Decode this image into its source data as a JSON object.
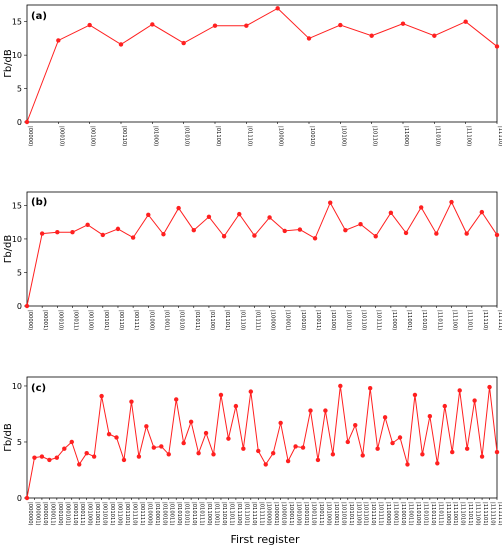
{
  "xlabel": "First register",
  "colors": {
    "series": "#ff2020",
    "axis": "#000000"
  },
  "chart_data": [
    {
      "type": "line",
      "panel_label": "(a)",
      "ylabel": "Γb/dB",
      "ylim": [
        0,
        17.5
      ],
      "yticks": [
        0,
        5,
        10,
        15
      ],
      "categories": [
        "|00000⟩",
        "|00010⟩",
        "|00100⟩",
        "|00110⟩",
        "|01000⟩",
        "|01010⟩",
        "|01100⟩",
        "|01110⟩",
        "|10000⟩",
        "|10010⟩",
        "|10100⟩",
        "|10110⟩",
        "|11000⟩",
        "|11010⟩",
        "|11100⟩",
        "|11110⟩"
      ],
      "values": [
        0,
        12.2,
        14.5,
        11.6,
        14.6,
        11.8,
        14.4,
        14.4,
        17.0,
        12.5,
        14.5,
        12.9,
        14.7,
        12.9,
        15.0,
        11.3
      ]
    },
    {
      "type": "line",
      "panel_label": "(b)",
      "ylabel": "Γb/dB",
      "ylim": [
        0,
        17
      ],
      "yticks": [
        0,
        5,
        10,
        15
      ],
      "categories": [
        "|00000⟩",
        "|00001⟩",
        "|00010⟩",
        "|00011⟩",
        "|00100⟩",
        "|00101⟩",
        "|00110⟩",
        "|00111⟩",
        "|01000⟩",
        "|01001⟩",
        "|01010⟩",
        "|01011⟩",
        "|01100⟩",
        "|01101⟩",
        "|01110⟩",
        "|01111⟩",
        "|10000⟩",
        "|10001⟩",
        "|10010⟩",
        "|10011⟩",
        "|10100⟩",
        "|10101⟩",
        "|10110⟩",
        "|10111⟩",
        "|11000⟩",
        "|11001⟩",
        "|11010⟩",
        "|11011⟩",
        "|11100⟩",
        "|11101⟩",
        "|11110⟩",
        "|11111⟩"
      ],
      "values": [
        0,
        10.8,
        11.0,
        11.0,
        12.1,
        10.6,
        11.5,
        10.2,
        13.6,
        10.7,
        14.6,
        11.3,
        13.3,
        10.4,
        13.7,
        10.5,
        13.2,
        11.2,
        11.4,
        10.1,
        15.4,
        11.3,
        12.2,
        10.4,
        13.9,
        10.9,
        14.7,
        10.8,
        15.5,
        10.8,
        14.0,
        10.6
      ]
    },
    {
      "type": "line",
      "panel_label": "(c)",
      "ylabel": "Γb/dB",
      "ylim": [
        0,
        10.8
      ],
      "yticks": [
        0,
        5,
        10
      ],
      "categories": [
        "|000000⟩",
        "|000001⟩",
        "|000010⟩",
        "|000011⟩",
        "|000100⟩",
        "|000101⟩",
        "|000110⟩",
        "|000111⟩",
        "|001000⟩",
        "|001001⟩",
        "|001010⟩",
        "|001011⟩",
        "|001100⟩",
        "|001101⟩",
        "|001110⟩",
        "|001111⟩",
        "|010000⟩",
        "|010001⟩",
        "|010010⟩",
        "|010011⟩",
        "|010100⟩",
        "|010101⟩",
        "|010110⟩",
        "|010111⟩",
        "|011000⟩",
        "|011001⟩",
        "|011010⟩",
        "|011011⟩",
        "|011100⟩",
        "|011101⟩",
        "|011110⟩",
        "|011111⟩",
        "|100000⟩",
        "|100001⟩",
        "|100010⟩",
        "|100011⟩",
        "|100100⟩",
        "|100101⟩",
        "|100110⟩",
        "|100111⟩",
        "|101000⟩",
        "|101001⟩",
        "|101010⟩",
        "|101011⟩",
        "|101100⟩",
        "|101101⟩",
        "|101110⟩",
        "|101111⟩",
        "|110000⟩",
        "|110001⟩",
        "|110010⟩",
        "|110011⟩",
        "|110100⟩",
        "|110101⟩",
        "|110110⟩",
        "|110111⟩",
        "|111000⟩",
        "|111001⟩",
        "|111010⟩",
        "|111011⟩",
        "|111100⟩",
        "|111101⟩",
        "|111110⟩",
        "|111111⟩"
      ],
      "values": [
        0,
        3.6,
        3.7,
        3.4,
        3.6,
        4.4,
        5.0,
        3.0,
        4.0,
        3.7,
        9.1,
        5.7,
        5.4,
        3.4,
        8.6,
        3.7,
        6.4,
        4.5,
        4.6,
        3.9,
        8.8,
        4.9,
        6.8,
        4.0,
        5.8,
        3.9,
        9.2,
        5.3,
        8.2,
        4.4,
        9.5,
        4.2,
        3.0,
        4.0,
        6.7,
        3.3,
        4.6,
        4.5,
        7.8,
        3.4,
        7.8,
        3.9,
        10.0,
        5.0,
        6.5,
        3.8,
        9.8,
        4.4,
        7.2,
        4.9,
        5.4,
        3.0,
        9.2,
        3.9,
        7.3,
        3.1,
        8.2,
        4.1,
        9.6,
        4.4,
        8.7,
        3.7,
        9.9,
        4.1
      ]
    }
  ]
}
